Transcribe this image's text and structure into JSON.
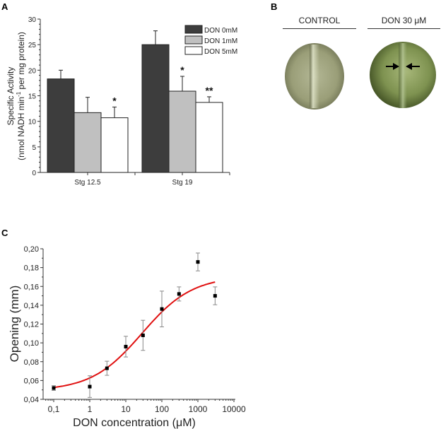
{
  "panels": {
    "a_label": "A",
    "b_label": "B",
    "c_label": "C"
  },
  "chart_data": [
    {
      "id": "A",
      "type": "bar",
      "title": "",
      "xlabel": "",
      "ylabel_line1": "Specific Activity",
      "ylabel_line2_pre": "(nmol NADH min",
      "ylabel_line2_sup": "-1",
      "ylabel_line2_post": " per mg protein)",
      "ylim": [
        0,
        30
      ],
      "yticks": [
        0,
        5,
        10,
        15,
        20,
        25,
        30
      ],
      "categories": [
        "Stg 12.5",
        "Stg 19"
      ],
      "series": [
        {
          "name": "DON 0mM",
          "color": "#3d3d3d",
          "values": [
            18.3,
            25.0
          ],
          "errors": [
            1.7,
            2.7
          ],
          "annotations": [
            "",
            ""
          ]
        },
        {
          "name": "DON 1mM",
          "color": "#c0c0c0",
          "values": [
            11.7,
            15.9
          ],
          "errors": [
            3.0,
            2.9
          ],
          "annotations": [
            "",
            "*"
          ]
        },
        {
          "name": "DON 5mM",
          "color": "#ffffff",
          "values": [
            10.7,
            13.7
          ],
          "errors": [
            2.1,
            1.1
          ],
          "annotations": [
            "*",
            "**"
          ]
        }
      ],
      "legend_position": "top-right",
      "grid": false
    },
    {
      "id": "C",
      "type": "scatter",
      "title": "",
      "xlabel": "DON concentration (μM)",
      "ylabel": "Opening (mm)",
      "xscale": "log",
      "xlim": [
        0.05,
        10000
      ],
      "ylim": [
        0.04,
        0.2
      ],
      "xticks": [
        0.1,
        1,
        10,
        100,
        1000,
        10000
      ],
      "xtick_labels": [
        "0,1",
        "1",
        "10",
        "100",
        "1000",
        "10000"
      ],
      "yticks": [
        0.04,
        0.06,
        0.08,
        0.1,
        0.12,
        0.14,
        0.16,
        0.18,
        0.2
      ],
      "ytick_labels": [
        "0,04",
        "0,06",
        "0,08",
        "0,10",
        "0,12",
        "0,14",
        "0,16",
        "0,18",
        "0,20"
      ],
      "points": [
        {
          "x": 0.1,
          "y": 0.052,
          "err": 0.0025
        },
        {
          "x": 1,
          "y": 0.0535,
          "err": 0.0115
        },
        {
          "x": 3,
          "y": 0.073,
          "err": 0.0075
        },
        {
          "x": 10,
          "y": 0.096,
          "err": 0.011
        },
        {
          "x": 30,
          "y": 0.108,
          "err": 0.016
        },
        {
          "x": 100,
          "y": 0.136,
          "err": 0.019
        },
        {
          "x": 300,
          "y": 0.152,
          "err": 0.0075
        },
        {
          "x": 1000,
          "y": 0.186,
          "err": 0.0095
        },
        {
          "x": 3000,
          "y": 0.15,
          "err": 0.0095
        }
      ],
      "fit": {
        "type": "sigmoid-log",
        "bottom": 0.049,
        "top": 0.171,
        "ec50": 28,
        "hill": 0.62,
        "x_from": 0.1,
        "x_to": 3000,
        "color": "#e01010"
      },
      "grid": false
    }
  ],
  "panel_b": {
    "left_title": "CONTROL",
    "right_title": "DON 30 μM"
  }
}
